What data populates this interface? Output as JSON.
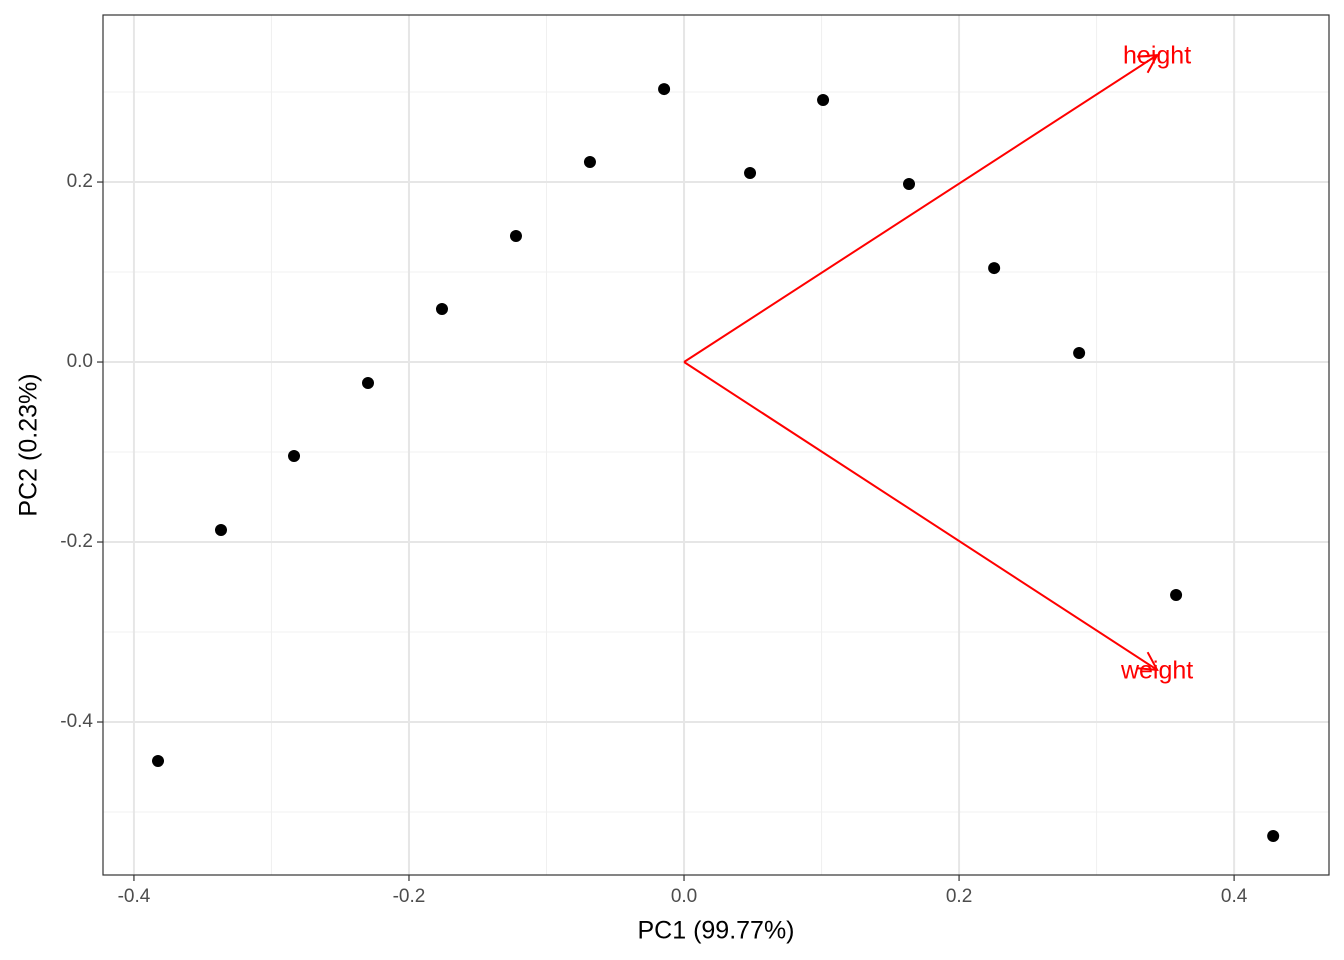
{
  "chart_data": {
    "type": "scatter",
    "x_label": "PC1 (99.77%)",
    "y_label": "PC2 (0.23%)",
    "x": [
      -0.3825,
      -0.3367,
      -0.2836,
      -0.2298,
      -0.176,
      -0.1222,
      -0.0684,
      -0.0145,
      0.048,
      0.1011,
      0.1636,
      0.2255,
      0.2873,
      0.3578,
      0.4284
    ],
    "series": [
      {
        "color": "#000000",
        "values": [
          -0.4433,
          -0.1867,
          -0.1044,
          -0.0233,
          0.0589,
          0.14,
          0.2222,
          0.3033,
          0.21,
          0.2911,
          0.1978,
          0.1044,
          0.01,
          -0.2589,
          -0.5267
        ]
      }
    ],
    "loadings": [
      {
        "name": "height",
        "x": 0.344,
        "y": 0.341
      },
      {
        "name": "weight",
        "x": 0.344,
        "y": -0.342
      }
    ],
    "loading_color": "#ff0000",
    "xlim": [
      -0.4225,
      0.469
    ],
    "ylim": [
      -0.57,
      0.3856
    ],
    "xticks": [
      -0.4,
      -0.2,
      {
        "value": 0,
        "label": "0.0"
      },
      0.2,
      0.4
    ],
    "yticks": [
      -0.4,
      -0.2,
      {
        "value": 0,
        "label": "0.0"
      },
      0.2
    ],
    "grid": true
  }
}
